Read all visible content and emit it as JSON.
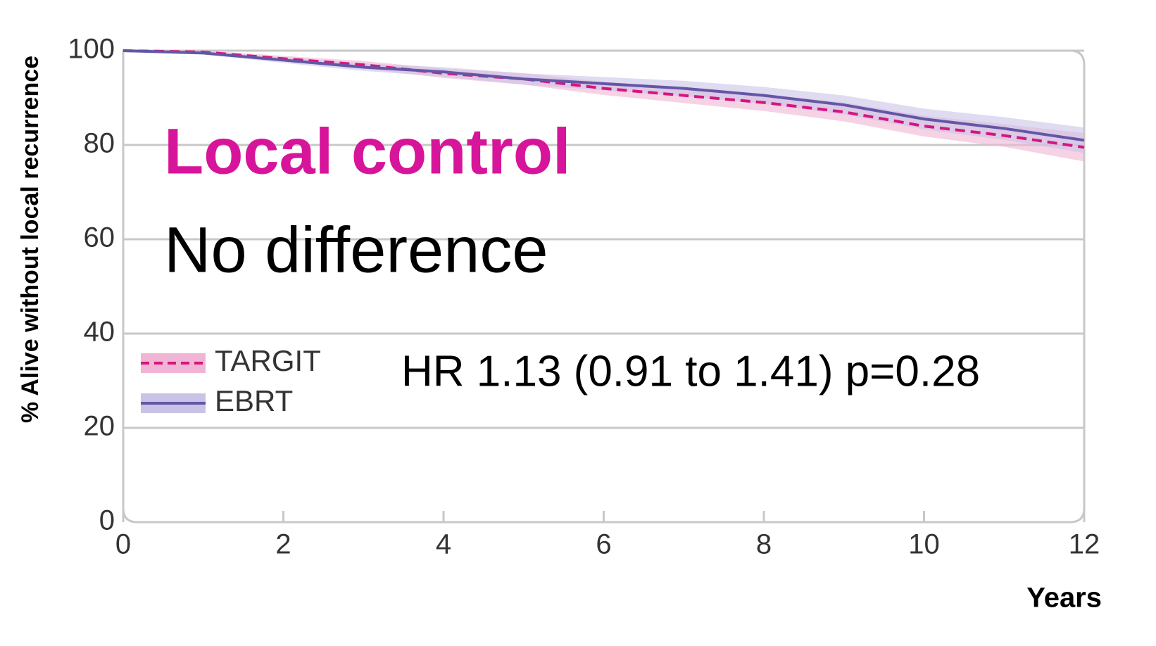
{
  "chart_data": {
    "type": "line",
    "y_label": "% Alive without local recurrence",
    "x_label": "Years",
    "annotations": [
      "Local control",
      "No difference",
      "HR 1.13 (0.91 to 1.41) p=0.28"
    ],
    "x": [
      0,
      1,
      2,
      3,
      4,
      5,
      6,
      7,
      8,
      9,
      10,
      11,
      12
    ],
    "series": [
      {
        "name": "TARGIT",
        "color": "#d6157f",
        "band_color": "#f0b4d4",
        "dash": true,
        "values": [
          100,
          99.7,
          98.3,
          97,
          95.2,
          94,
          92,
          90.5,
          89,
          87,
          84,
          82,
          79.5
        ],
        "lower": [
          100,
          99.4,
          97.7,
          96.2,
          94.2,
          92.8,
          90.6,
          88.9,
          87.2,
          85,
          81.8,
          79.6,
          76.5
        ],
        "upper": [
          100,
          100,
          98.9,
          97.8,
          96.2,
          95.2,
          93.4,
          92.1,
          90.8,
          89,
          86.2,
          84.4,
          82.5
        ]
      },
      {
        "name": "EBRT",
        "color": "#6456a6",
        "band_color": "#c9c3e6",
        "dash": false,
        "values": [
          100,
          99.5,
          98,
          96.5,
          95.5,
          94,
          93,
          92,
          90.5,
          88.5,
          85.5,
          83.5,
          81
        ],
        "lower": [
          100,
          99.2,
          97.4,
          95.7,
          94.5,
          92.8,
          91.6,
          90.4,
          88.7,
          86.5,
          83.3,
          81.1,
          78.3
        ],
        "upper": [
          100,
          99.8,
          98.6,
          97.3,
          96.5,
          95.2,
          94.4,
          93.6,
          92.3,
          90.5,
          87.7,
          85.9,
          83.7
        ]
      }
    ],
    "xlim": [
      0,
      12
    ],
    "xticks": [
      0,
      2,
      4,
      6,
      8,
      10,
      12
    ],
    "ylim": [
      0,
      100
    ],
    "yticks": [
      0,
      20,
      40,
      60,
      80,
      100
    ],
    "grid": true
  }
}
